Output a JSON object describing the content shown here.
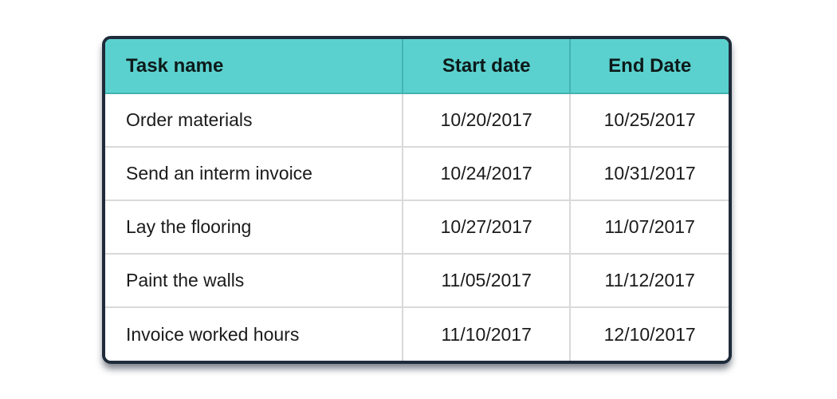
{
  "table": {
    "columns": [
      {
        "label": "Task name"
      },
      {
        "label": "Start date"
      },
      {
        "label": "End Date"
      }
    ],
    "rows": [
      {
        "task": "Order materials",
        "start": "10/20/2017",
        "end": "10/25/2017"
      },
      {
        "task": "Send an interm invoice",
        "start": "10/24/2017",
        "end": "10/31/2017"
      },
      {
        "task": "Lay the flooring",
        "start": "10/27/2017",
        "end": "11/07/2017"
      },
      {
        "task": "Paint the walls",
        "start": "11/05/2017",
        "end": "11/12/2017"
      },
      {
        "task": "Invoice worked hours",
        "start": "11/10/2017",
        "end": "12/10/2017"
      }
    ]
  },
  "colors": {
    "header_bg": "#5ad1ce",
    "header_divider": "#43b3b1",
    "outer_border": "#1e2b3a",
    "row_divider": "#d9d9d9",
    "body_bg": "#ffffff",
    "text": "#1b1b1b"
  }
}
